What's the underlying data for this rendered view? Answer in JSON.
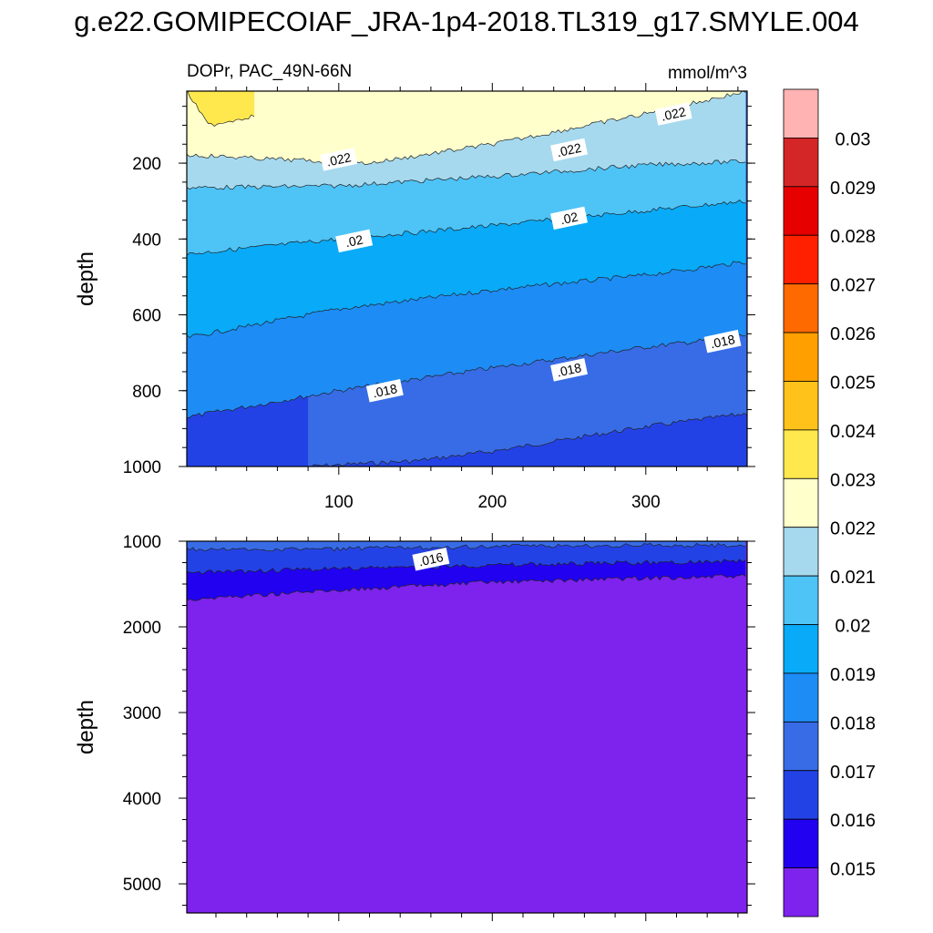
{
  "page_title": "g.e22.GOMIPECOIAF_JRA-1p4-2018.TL319_g17.SMYLE.004",
  "chart_data": [
    {
      "type": "heatmap",
      "panel": "upper",
      "subtitle_left": "DOPr, PAC_49N-66N",
      "subtitle_right": "mmol/m^3",
      "ylabel": "depth",
      "xlabel": "",
      "xlim": [
        1,
        366
      ],
      "ylim": [
        1000,
        10
      ],
      "y_reversed": true,
      "xticks": [
        100,
        200,
        300
      ],
      "yticks": [
        200,
        400,
        600,
        800,
        1000
      ],
      "contour_boundaries": [
        {
          "level": 0.023,
          "depth_at_x": [
            [
              1,
              10
            ],
            [
              15,
              100
            ],
            [
              45,
              75
            ],
            [
              46,
              10
            ]
          ]
        },
        {
          "level": 0.022,
          "depth_at_x": [
            [
              1,
              178
            ],
            [
              60,
              190
            ],
            [
              120,
              200
            ],
            [
              200,
              150
            ],
            [
              300,
              70
            ],
            [
              366,
              10
            ]
          ]
        },
        {
          "level": 0.0215,
          "depth_at_x": [
            [
              1,
              265
            ],
            [
              100,
              260
            ],
            [
              200,
              235
            ],
            [
              300,
              205
            ],
            [
              366,
              195
            ]
          ]
        },
        {
          "level": 0.021,
          "depth_at_x": [
            [
              1,
              440
            ],
            [
              100,
              400
            ],
            [
              200,
              365
            ],
            [
              300,
              325
            ],
            [
              366,
              300
            ]
          ]
        },
        {
          "level": 0.0195,
          "depth_at_x": [
            [
              1,
              660
            ],
            [
              100,
              585
            ],
            [
              200,
              535
            ],
            [
              300,
              495
            ],
            [
              366,
              460
            ]
          ]
        },
        {
          "level": 0.0185,
          "depth_at_x": [
            [
              1,
              870
            ],
            [
              100,
              800
            ],
            [
              200,
              740
            ],
            [
              300,
              685
            ],
            [
              366,
              655
            ]
          ]
        },
        {
          "level": 0.0175,
          "depth_at_x": [
            [
              80,
              1000
            ],
            [
              150,
              985
            ],
            [
              200,
              960
            ],
            [
              300,
              895
            ],
            [
              366,
              860
            ]
          ]
        }
      ],
      "contour_labels": [
        {
          "text": ".022",
          "x": 100,
          "depth": 190
        },
        {
          "text": ".022",
          "x": 250,
          "depth": 165
        },
        {
          "text": ".022",
          "x": 318,
          "depth": 70
        },
        {
          "text": ".02",
          "x": 110,
          "depth": 405
        },
        {
          "text": ".02",
          "x": 250,
          "depth": 345
        },
        {
          "text": ".018",
          "x": 130,
          "depth": 800
        },
        {
          "text": ".018",
          "x": 250,
          "depth": 745
        },
        {
          "text": ".018",
          "x": 350,
          "depth": 670
        }
      ]
    },
    {
      "type": "heatmap",
      "panel": "lower",
      "ylabel": "depth",
      "xlabel": "",
      "xlim": [
        1,
        366
      ],
      "ylim": [
        5300,
        1000
      ],
      "y_reversed": true,
      "yticks": [
        1000,
        2000,
        3000,
        4000,
        5000
      ],
      "contour_boundaries": [
        {
          "level": 0.0165,
          "depth_at_x": [
            [
              1,
              1100
            ],
            [
              100,
              1090
            ],
            [
              200,
              1060
            ],
            [
              300,
              1050
            ],
            [
              366,
              1050
            ]
          ]
        },
        {
          "level": 0.0155,
          "depth_at_x": [
            [
              1,
              1370
            ],
            [
              100,
              1320
            ],
            [
              200,
              1280
            ],
            [
              300,
              1250
            ],
            [
              366,
              1230
            ]
          ]
        },
        {
          "level": 0.015,
          "depth_at_x": [
            [
              1,
              1680
            ],
            [
              100,
              1570
            ],
            [
              200,
              1480
            ],
            [
              300,
              1430
            ],
            [
              366,
              1410
            ]
          ]
        }
      ],
      "contour_labels": [
        {
          "text": ".016",
          "x": 160,
          "depth": 1210
        }
      ]
    }
  ],
  "colorbar": {
    "labels": [
      "0.03",
      "0.029",
      "0.028",
      "0.027",
      "0.026",
      "0.025",
      "0.024",
      "0.023",
      "0.022",
      "0.021",
      "0.02",
      "0.019",
      "0.018",
      "0.017",
      "0.016",
      "0.015"
    ],
    "colors": [
      "#ffb3b3",
      "#d42626",
      "#e60000",
      "#ff2000",
      "#ff6a00",
      "#ff9f00",
      "#ffc21a",
      "#ffe84d",
      "#ffffcc",
      "#a6d9ee",
      "#4ec3f6",
      "#09aaf7",
      "#1d8cf5",
      "#386ce6",
      "#2342e6",
      "#2200f0",
      "#7e22ee"
    ]
  }
}
